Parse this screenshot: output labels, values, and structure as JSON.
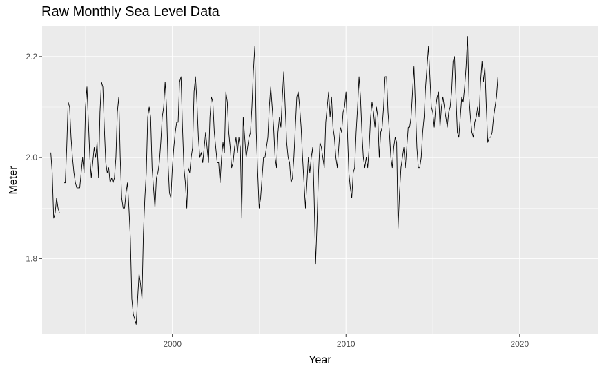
{
  "chart_data": {
    "type": "line",
    "title": "Raw Monthly Sea Level Data",
    "xlabel": "Year",
    "ylabel": "Meter",
    "xlim": [
      1992.5,
      2024.5
    ],
    "ylim": [
      1.65,
      2.26
    ],
    "x_ticks": [
      2000,
      2010,
      2020
    ],
    "x_tick_labels": [
      "2000",
      "2010",
      "2020"
    ],
    "y_ticks": [
      1.8,
      2.0,
      2.2
    ],
    "y_tick_labels": [
      "1.8",
      "2.0",
      "2.2"
    ],
    "grid": true,
    "legend": "none",
    "colors": {
      "panel": "#ebebeb",
      "grid": "#ffffff",
      "line": "#000000"
    },
    "series": [
      {
        "x_start": 1993.0,
        "step": 0.08333,
        "values": [
          2.01,
          1.97,
          1.88,
          1.89,
          1.92,
          1.9,
          1.89,
          null,
          null,
          1.95,
          1.95,
          2.02,
          2.11,
          2.1,
          2.04,
          2.0,
          1.97,
          1.95,
          1.94,
          1.94,
          1.94,
          1.97,
          2.0,
          1.97,
          2.1,
          2.14,
          2.07,
          2.0,
          1.96,
          1.99,
          2.02,
          2.0,
          2.03,
          1.96,
          2.09,
          2.15,
          2.14,
          2.06,
          1.99,
          1.97,
          1.98,
          1.95,
          1.96,
          1.95,
          1.96,
          2.0,
          2.09,
          2.12,
          2.0,
          1.92,
          1.9,
          1.9,
          1.93,
          1.95,
          1.9,
          1.84,
          1.72,
          1.69,
          1.68,
          1.67,
          1.72,
          1.77,
          1.75,
          1.72,
          1.85,
          1.92,
          1.97,
          2.08,
          2.1,
          2.08,
          1.98,
          1.94,
          1.9,
          1.96,
          1.97,
          1.99,
          2.03,
          2.08,
          2.1,
          2.15,
          2.1,
          1.99,
          1.93,
          1.92,
          1.98,
          2.02,
          2.05,
          2.07,
          2.07,
          2.15,
          2.16,
          2.06,
          1.98,
          1.95,
          1.9,
          1.98,
          1.97,
          2.0,
          2.02,
          2.13,
          2.16,
          2.11,
          2.04,
          2.0,
          2.01,
          1.99,
          2.02,
          2.05,
          2.02,
          1.99,
          2.08,
          2.12,
          2.11,
          2.05,
          2.02,
          1.99,
          1.99,
          1.95,
          2.0,
          2.03,
          2.01,
          2.13,
          2.11,
          2.05,
          2.02,
          1.98,
          1.99,
          2.02,
          2.04,
          2.01,
          2.04,
          2.02,
          1.88,
          2.08,
          2.04,
          2.0,
          2.02,
          2.04,
          2.05,
          2.1,
          2.17,
          2.22,
          2.05,
          1.97,
          1.9,
          1.92,
          1.96,
          2.0,
          2.0,
          2.02,
          2.04,
          2.1,
          2.14,
          2.1,
          2.06,
          2.0,
          1.98,
          2.05,
          2.08,
          2.06,
          2.12,
          2.17,
          2.1,
          2.03,
          2.0,
          1.99,
          1.95,
          1.96,
          2.0,
          2.06,
          2.12,
          2.13,
          2.1,
          2.06,
          2.0,
          1.95,
          1.9,
          1.95,
          2.0,
          1.97,
          2.0,
          2.02,
          1.92,
          1.79,
          1.87,
          1.97,
          2.03,
          2.02,
          2.0,
          1.98,
          2.07,
          2.1,
          2.13,
          2.08,
          2.12,
          2.06,
          2.04,
          2.0,
          1.98,
          2.02,
          2.06,
          2.05,
          2.09,
          2.1,
          2.13,
          2.05,
          1.97,
          1.94,
          1.92,
          1.97,
          1.98,
          2.05,
          2.1,
          2.16,
          2.12,
          2.05,
          2.0,
          1.98,
          2.0,
          1.98,
          2.02,
          2.08,
          2.11,
          2.09,
          2.06,
          2.1,
          2.08,
          2.0,
          2.05,
          2.06,
          2.1,
          2.16,
          2.16,
          2.09,
          2.05,
          2.0,
          1.98,
          2.02,
          2.04,
          2.03,
          1.86,
          1.93,
          1.98,
          2.0,
          2.02,
          1.98,
          2.02,
          2.06,
          2.06,
          2.08,
          2.13,
          2.18,
          2.1,
          2.02,
          1.98,
          1.98,
          2.0,
          2.05,
          2.08,
          2.14,
          2.18,
          2.22,
          2.16,
          2.1,
          2.09,
          2.06,
          2.1,
          2.12,
          2.13,
          2.06,
          2.1,
          2.12,
          2.1,
          2.08,
          2.06,
          2.09,
          2.1,
          2.13,
          2.19,
          2.2,
          2.12,
          2.05,
          2.04,
          2.08,
          2.12,
          2.11,
          2.14,
          2.18,
          2.24,
          2.12,
          2.08,
          2.05,
          2.04,
          2.07,
          2.08,
          2.1,
          2.08,
          2.15,
          2.19,
          2.15,
          2.18,
          2.1,
          2.03,
          2.04,
          2.04,
          2.05,
          2.08,
          2.1,
          2.12,
          2.16
        ]
      }
    ]
  }
}
